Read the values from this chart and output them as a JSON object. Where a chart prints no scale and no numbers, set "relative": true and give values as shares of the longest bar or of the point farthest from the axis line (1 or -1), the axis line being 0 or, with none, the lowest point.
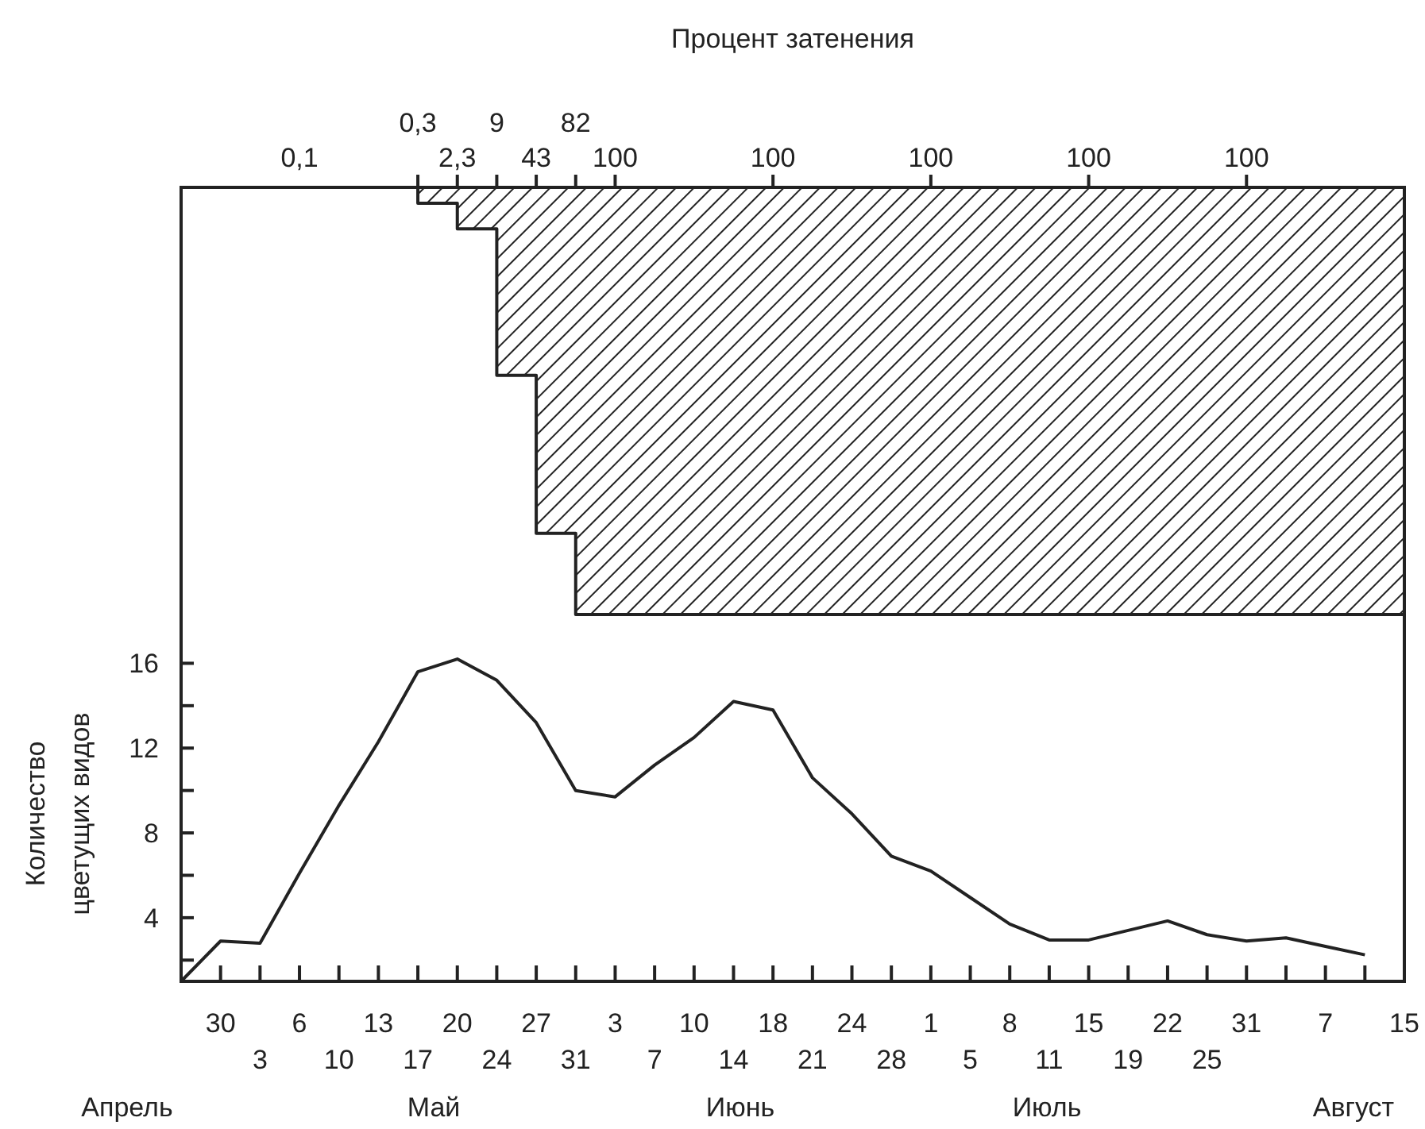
{
  "chart_data": [
    {
      "type": "area",
      "relative": true,
      "title": "Процент затенения",
      "tick_labels": "x",
      "categories": [
        null,
        null,
        null,
        "0,1",
        null,
        null,
        "0,3",
        "2,3",
        "9",
        "43",
        "82",
        "100",
        null,
        null,
        null,
        "100",
        null,
        null,
        null,
        "100",
        null,
        null,
        null,
        "100",
        null,
        null,
        null,
        "100",
        null,
        null,
        null,
        null
      ],
      "series": [
        {
          "color": "#222222",
          "values": [
            0,
            0,
            0,
            0,
            0,
            0,
            -0.037,
            -0.097,
            -0.44,
            -0.81,
            -1,
            -1,
            -1,
            -1,
            -1,
            -1,
            -1,
            -1,
            -1,
            -1,
            -1,
            -1,
            -1,
            -1,
            -1,
            -1,
            -1,
            -1,
            -1,
            -1,
            -1,
            -1
          ]
        }
      ]
    },
    {
      "type": "line",
      "ylabel": "Количество цветущих видов",
      "ylim": [
        1,
        18.3
      ],
      "yticks": [
        {
          "value": 2,
          "label": null
        },
        4,
        {
          "value": 6,
          "label": null
        },
        8,
        {
          "value": 10,
          "label": null
        },
        12,
        {
          "value": 14,
          "label": null
        },
        16
      ],
      "categories": [
        null,
        "30",
        "3",
        "6",
        "10",
        "13",
        "17",
        "20",
        "24",
        "27",
        "31",
        "3",
        "7",
        "10",
        "14",
        "18",
        "21",
        "24",
        "28",
        "1",
        "5",
        "8",
        "11",
        "15",
        "19",
        "22",
        "25",
        "31",
        null,
        "7",
        null,
        "15"
      ],
      "annotations": [
        "Апрель",
        "Май",
        "Июнь",
        "Июль",
        "Август"
      ],
      "series": [
        {
          "color": "#222222",
          "values": [
            1.0,
            2.9,
            2.8,
            6.1,
            9.3,
            12.3,
            15.6,
            16.2,
            15.2,
            13.2,
            10.0,
            9.7,
            11.2,
            12.5,
            14.2,
            13.8,
            10.6,
            8.9,
            6.9,
            6.2,
            4.95,
            3.7,
            2.95,
            2.95,
            3.4,
            3.85,
            3.2,
            2.9,
            3.05,
            2.65,
            2.25,
            null
          ]
        }
      ]
    }
  ]
}
